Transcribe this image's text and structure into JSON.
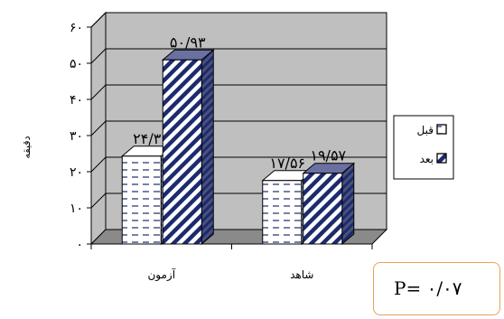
{
  "chart_data": {
    "type": "bar",
    "categories": [
      "آزمون",
      "شاهد"
    ],
    "series": [
      {
        "name": "قبل",
        "values": [
          24.3,
          17.56
        ],
        "labels": [
          "۲۴/۳",
          "۱۷/۵۶"
        ],
        "pattern": "dashes"
      },
      {
        "name": "بعد",
        "values": [
          50.93,
          19.57
        ],
        "labels": [
          "۵۰/۹۳",
          "۱۹/۵۷"
        ],
        "pattern": "diagonal"
      }
    ],
    "ylabel": "دقیقه",
    "ylim": [
      0,
      60
    ],
    "yticks": [
      0,
      10,
      20,
      30,
      40,
      50,
      60
    ],
    "ytick_labels": [
      "۰",
      "۱۰",
      "۲۰",
      "۳۰",
      "۴۰",
      "۵۰",
      "۶۰"
    ],
    "grid": true,
    "legend": "right",
    "colors": {
      "fill": "#ffffff",
      "stripe": "#1c2a6e",
      "wall": "#bfbfbf",
      "floor": "#8a8a8a"
    }
  },
  "annotation": {
    "pvalue": "P= ۰/۰۷"
  }
}
